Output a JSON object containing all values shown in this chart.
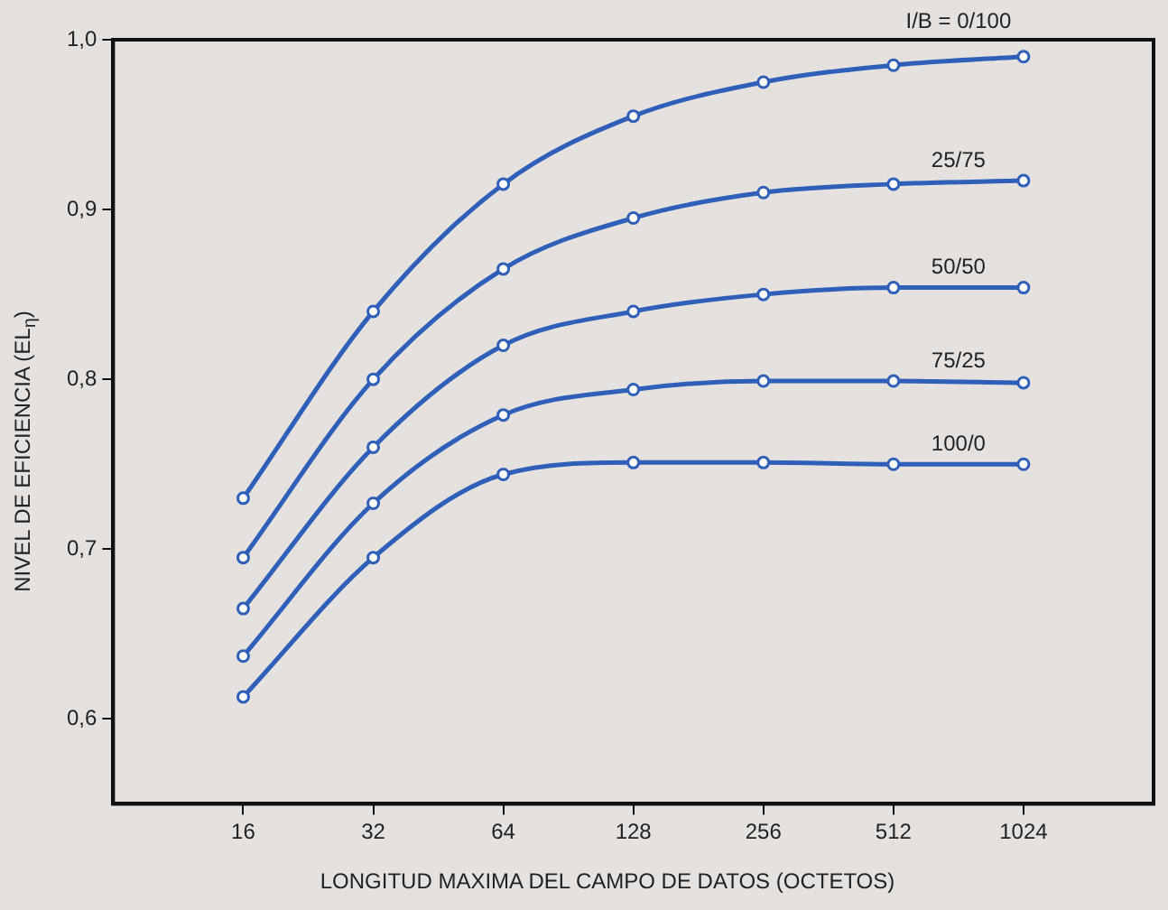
{
  "chart_data": {
    "type": "line",
    "xlabel": "LONGITUD MAXIMA DEL CAMPO DE DATOS (OCTETOS)",
    "ylabel": "NIVEL DE EFICIENCIA (EL$_{η}$)",
    "x": [
      16,
      32,
      64,
      128,
      256,
      512,
      1024
    ],
    "series": [
      {
        "name": "I/B = 0/100",
        "color": "#2f5fb8",
        "values": [
          0.73,
          0.84,
          0.915,
          0.955,
          0.975,
          0.985,
          0.99
        ]
      },
      {
        "name": "25/75",
        "color": "#2f5fb8",
        "values": [
          0.695,
          0.8,
          0.865,
          0.895,
          0.91,
          0.915,
          0.917
        ]
      },
      {
        "name": "50/50",
        "color": "#2f5fb8",
        "values": [
          0.665,
          0.76,
          0.82,
          0.84,
          0.85,
          0.854,
          0.854
        ]
      },
      {
        "name": "75/25",
        "color": "#2f5fb8",
        "values": [
          0.637,
          0.727,
          0.779,
          0.794,
          0.799,
          0.799,
          0.798
        ]
      },
      {
        "name": "100/0",
        "color": "#2f5fb8",
        "values": [
          0.613,
          0.695,
          0.744,
          0.751,
          0.751,
          0.75,
          0.75
        ]
      }
    ],
    "log": "x",
    "xlim": [
      8,
      2048
    ],
    "xticks": [
      16,
      32,
      64,
      128,
      256,
      512,
      1024
    ],
    "ylim": [
      0.55,
      1.0
    ],
    "yticks": [
      {
        "value": 0.6,
        "label": "0,6"
      },
      {
        "value": 0.7,
        "label": "0,7"
      },
      {
        "value": 0.8,
        "label": "0,8"
      },
      {
        "value": 0.9,
        "label": "0,9"
      },
      {
        "value": 1.0,
        "label": "1,0"
      }
    ],
    "grid": false,
    "legend": false,
    "marker": "circle",
    "line_style": "solid"
  }
}
